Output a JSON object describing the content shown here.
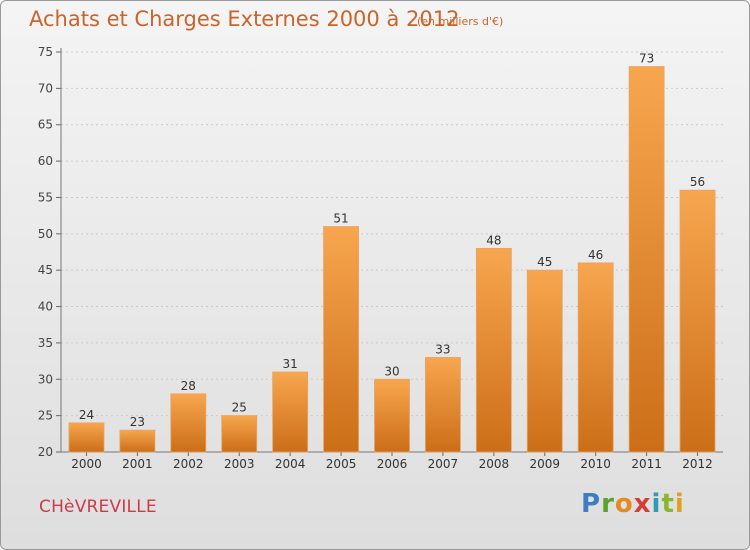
{
  "header": {
    "title": "Achats et Charges Externes 2000 à 2012",
    "subtitle": "(en milliers d'€)"
  },
  "footer": {
    "commune": "CHèVREVILLE",
    "logo_letters": [
      "P",
      "r",
      "o",
      "x",
      "i",
      "t",
      "i"
    ]
  },
  "colors": {
    "bar_light": "#f7a64f",
    "bar_dark": "#cc6e18",
    "title": "#c8652c",
    "commune": "#cc3b4c"
  },
  "chart_data": {
    "type": "bar",
    "title": "Achats et Charges Externes 2000 à 2012",
    "subtitle": "(en milliers d'€)",
    "categories": [
      "2000",
      "2001",
      "2002",
      "2003",
      "2004",
      "2005",
      "2006",
      "2007",
      "2008",
      "2009",
      "2010",
      "2011",
      "2012"
    ],
    "values": [
      24,
      23,
      28,
      25,
      31,
      51,
      30,
      33,
      48,
      45,
      46,
      73,
      56
    ],
    "ylim": [
      20,
      75
    ],
    "yticks": [
      20,
      25,
      30,
      35,
      40,
      45,
      50,
      55,
      60,
      65,
      70,
      75
    ],
    "grid": true,
    "legend": "none"
  }
}
